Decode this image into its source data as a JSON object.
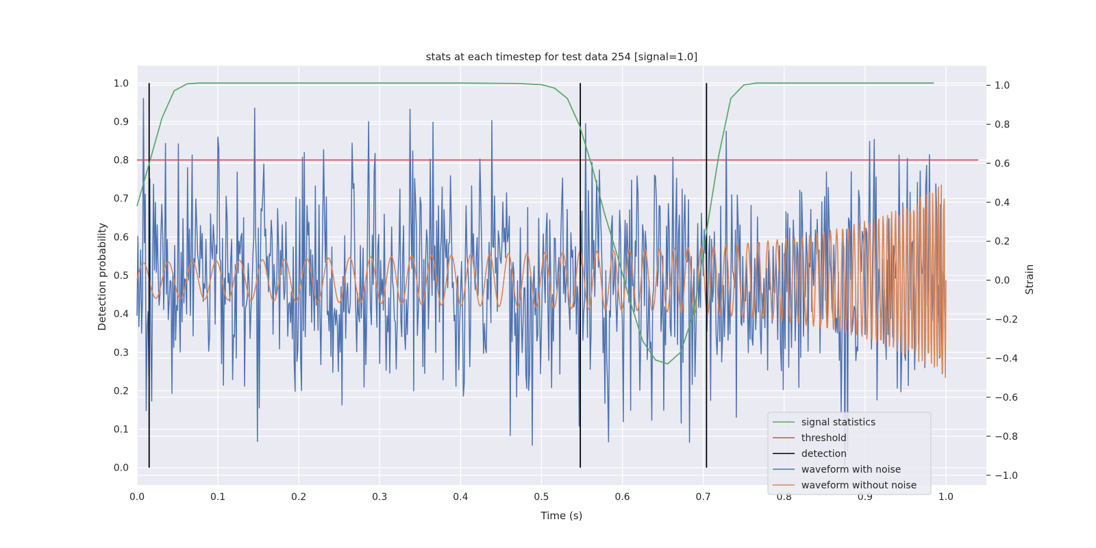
{
  "chart_data": {
    "type": "line",
    "title": "stats at each timestep for test data 254 [signal=1.0]",
    "xlabel": "Time (s)",
    "ylabel": "Detection probability",
    "y2label": "Strain",
    "xlim": [
      0.0,
      1.05
    ],
    "ylim": [
      -0.045,
      1.045
    ],
    "y2lim": [
      -1.05,
      1.1
    ],
    "xticks": [
      "0.0",
      "0.1",
      "0.2",
      "0.3",
      "0.4",
      "0.5",
      "0.6",
      "0.7",
      "0.8",
      "0.9",
      "1.0"
    ],
    "yticks": [
      "0.0",
      "0.1",
      "0.2",
      "0.3",
      "0.4",
      "0.5",
      "0.6",
      "0.7",
      "0.8",
      "0.9",
      "1.0"
    ],
    "y2ticks": [
      "−1.0",
      "−0.8",
      "−0.6",
      "−0.4",
      "−0.2",
      "0.0",
      "0.2",
      "0.4",
      "0.6",
      "0.8",
      "1.0"
    ],
    "grid": true,
    "legend_position": "lower-right",
    "legend": [
      "signal statistics",
      "threshold",
      "detection",
      "waveform with noise",
      "waveform without noise"
    ],
    "colors": {
      "signal_statistics": "#55a868",
      "threshold": "#c44e52",
      "detection": "#000000",
      "waveform_with_noise": "#4c72b0",
      "waveform_without_noise": "#dd8452",
      "background": "#eaeaf2",
      "grid": "#ffffff"
    },
    "signal_statistics": {
      "x": [
        0.0,
        0.015,
        0.031,
        0.046,
        0.062,
        0.077,
        0.1,
        0.2,
        0.3,
        0.4,
        0.47,
        0.5,
        0.516,
        0.532,
        0.547,
        0.563,
        0.578,
        0.594,
        0.61,
        0.625,
        0.641,
        0.656,
        0.672,
        0.688,
        0.703,
        0.719,
        0.734,
        0.75,
        0.766,
        0.8,
        0.9,
        0.985
      ],
      "y": [
        0.68,
        0.79,
        0.91,
        0.98,
        0.998,
        1.0,
        1.0,
        1.0,
        1.0,
        1.0,
        0.999,
        0.996,
        0.987,
        0.96,
        0.89,
        0.78,
        0.66,
        0.55,
        0.43,
        0.33,
        0.28,
        0.27,
        0.3,
        0.4,
        0.6,
        0.81,
        0.96,
        0.995,
        1.0,
        1.0,
        1.0,
        1.0
      ]
    },
    "threshold": {
      "y": 0.8,
      "x_range": [
        0.0,
        1.04
      ]
    },
    "detections": {
      "x": [
        0.015,
        0.548,
        0.704
      ],
      "y_range": [
        0.0,
        1.0
      ]
    },
    "waveform_without_noise": {
      "axis": "right",
      "t_range": [
        0.0,
        1.0
      ],
      "points": 1400,
      "frequency_start_hz": 32,
      "frequency_chirp_hz_per_s": 12,
      "frequency_end_boost_hz": 28,
      "amplitude_start": 0.09,
      "amplitude_growth": 0.1,
      "amplitude_end_boost": 0.32
    },
    "waveform_with_noise": {
      "axis": "right",
      "t_range": [
        0.0,
        1.0
      ],
      "points": 880,
      "noise_std": 0.3,
      "y_min": -0.95,
      "y_max": 1.0
    }
  }
}
